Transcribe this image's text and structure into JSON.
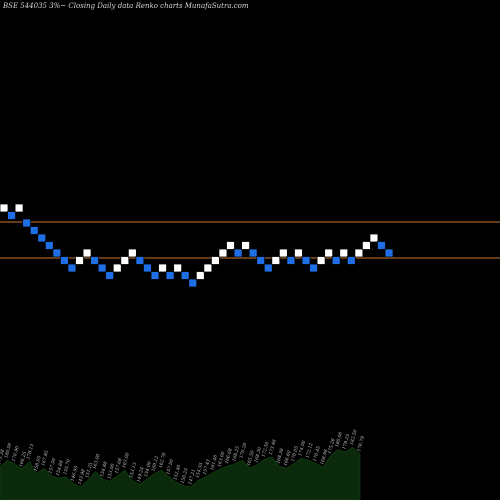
{
  "header": {
    "title": "BSE 544035 3%~  Closing Daily data  Renko  charts MunafaSutra.com"
  },
  "colors": {
    "background": "#000000",
    "up_brick": "#ffffff",
    "down_brick": "#1e6ee6",
    "brick_border": "#000000",
    "level_line": "#c87832",
    "volume_fill": "#0b2a0b",
    "volume_label": "#c8c8c8"
  },
  "chart_data": {
    "type": "renko",
    "title": "BSE 544035 3%~  Closing Daily data  Renko  charts MunafaSutra.com",
    "brick_steps": [
      8,
      7,
      8,
      6,
      5,
      4,
      3,
      2,
      1,
      0,
      1,
      2,
      1,
      0,
      -1,
      0,
      1,
      2,
      1,
      0,
      -1,
      0,
      -1,
      0,
      -1,
      -2,
      -1,
      0,
      1,
      2,
      3,
      2,
      3,
      2,
      1,
      0,
      1,
      2,
      1,
      2,
      1,
      0,
      1,
      2,
      1,
      2,
      1,
      2,
      3,
      4,
      3,
      2
    ],
    "brick_directions": [
      "up",
      "down",
      "up",
      "down",
      "down",
      "down",
      "down",
      "down",
      "down",
      "down",
      "up",
      "up",
      "down",
      "down",
      "down",
      "up",
      "up",
      "up",
      "down",
      "down",
      "down",
      "up",
      "down",
      "up",
      "down",
      "down",
      "up",
      "up",
      "up",
      "up",
      "up",
      "down",
      "up",
      "down",
      "down",
      "down",
      "up",
      "up",
      "down",
      "up",
      "down",
      "down",
      "up",
      "up",
      "down",
      "up",
      "down",
      "up",
      "up",
      "up",
      "down",
      "down"
    ],
    "horizontal_levels": [
      "upper",
      "lower"
    ],
    "volume_labels": [
      "173.38",
      "180.00",
      "176.90",
      "166.25",
      "178.13",
      "158.05",
      "167.85",
      "157.50",
      "154.88",
      "155.70",
      "146.95",
      "143.98",
      "151.25",
      "163.00",
      "154.88",
      "153.00",
      "157.68",
      "163.00",
      "153.13",
      "149.24",
      "154.00",
      "160.12",
      "162.78",
      "157.50",
      "152.40",
      "150.25",
      "147.21",
      "154.55",
      "157.43",
      "161.40",
      "163.00",
      "166.68",
      "168.25",
      "170.20",
      "165.50",
      "168.30",
      "172.50",
      "173.46",
      "168.38",
      "166.60",
      "170.05",
      "174.00",
      "172.12",
      "170.45",
      "168.98",
      "175.26",
      "180.00",
      "179.25",
      "182.50",
      "176.79"
    ],
    "volume_heights": [
      0.3,
      0.36,
      0.33,
      0.28,
      0.35,
      0.24,
      0.29,
      0.22,
      0.2,
      0.21,
      0.15,
      0.12,
      0.18,
      0.26,
      0.19,
      0.17,
      0.22,
      0.27,
      0.18,
      0.14,
      0.19,
      0.24,
      0.27,
      0.21,
      0.16,
      0.13,
      0.12,
      0.18,
      0.21,
      0.25,
      0.28,
      0.31,
      0.33,
      0.36,
      0.29,
      0.32,
      0.37,
      0.39,
      0.31,
      0.29,
      0.33,
      0.38,
      0.36,
      0.33,
      0.3,
      0.4,
      0.46,
      0.44,
      0.48,
      0.42
    ]
  }
}
